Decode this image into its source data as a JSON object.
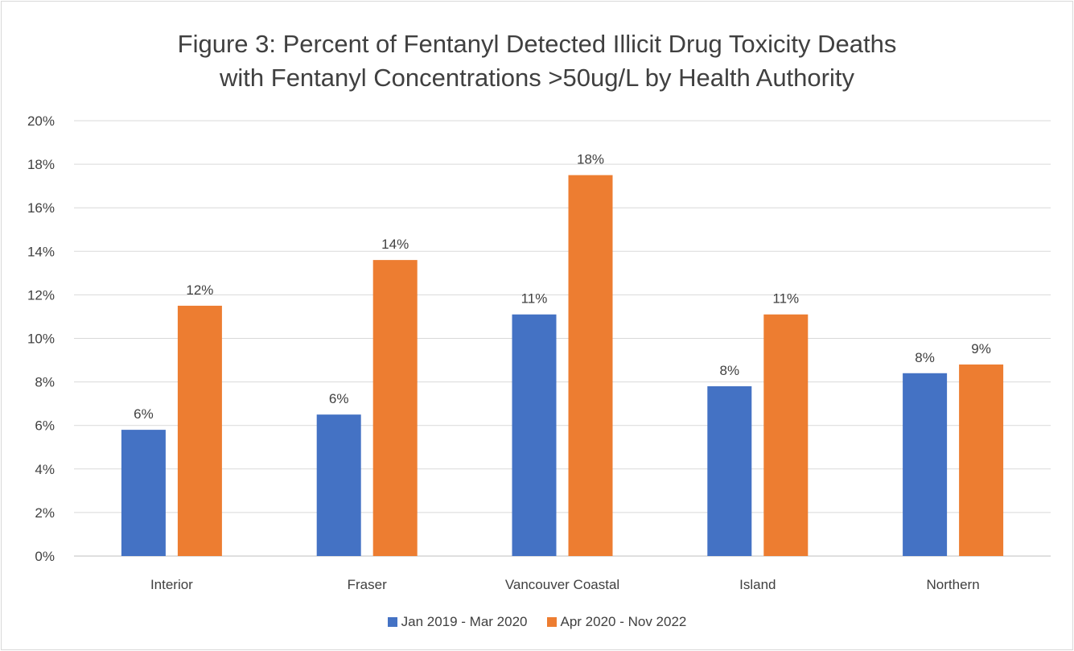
{
  "chart_data": {
    "type": "bar",
    "title_line1": "Figure 3: Percent of Fentanyl Detected Illicit Drug Toxicity Deaths",
    "title_line2": "with Fentanyl Concentrations >50ug/L by Health Authority",
    "categories": [
      "Interior",
      "Fraser",
      "Vancouver Coastal",
      "Island",
      "Northern"
    ],
    "series": [
      {
        "name": "Jan 2019 - Mar 2020",
        "color": "#4472c4",
        "values": [
          5.8,
          6.5,
          11.1,
          7.8,
          8.4
        ],
        "labels": [
          "6%",
          "6%",
          "11%",
          "8%",
          "8%"
        ]
      },
      {
        "name": "Apr 2020 - Nov 2022",
        "color": "#ed7d31",
        "values": [
          11.5,
          13.6,
          17.5,
          11.1,
          8.8
        ],
        "labels": [
          "12%",
          "14%",
          "18%",
          "11%",
          "9%"
        ]
      }
    ],
    "y_ticks": [
      "0%",
      "2%",
      "4%",
      "6%",
      "8%",
      "10%",
      "12%",
      "14%",
      "16%",
      "18%",
      "20%"
    ],
    "ylim": [
      0,
      20
    ],
    "grid": true,
    "legend_position": "bottom"
  }
}
